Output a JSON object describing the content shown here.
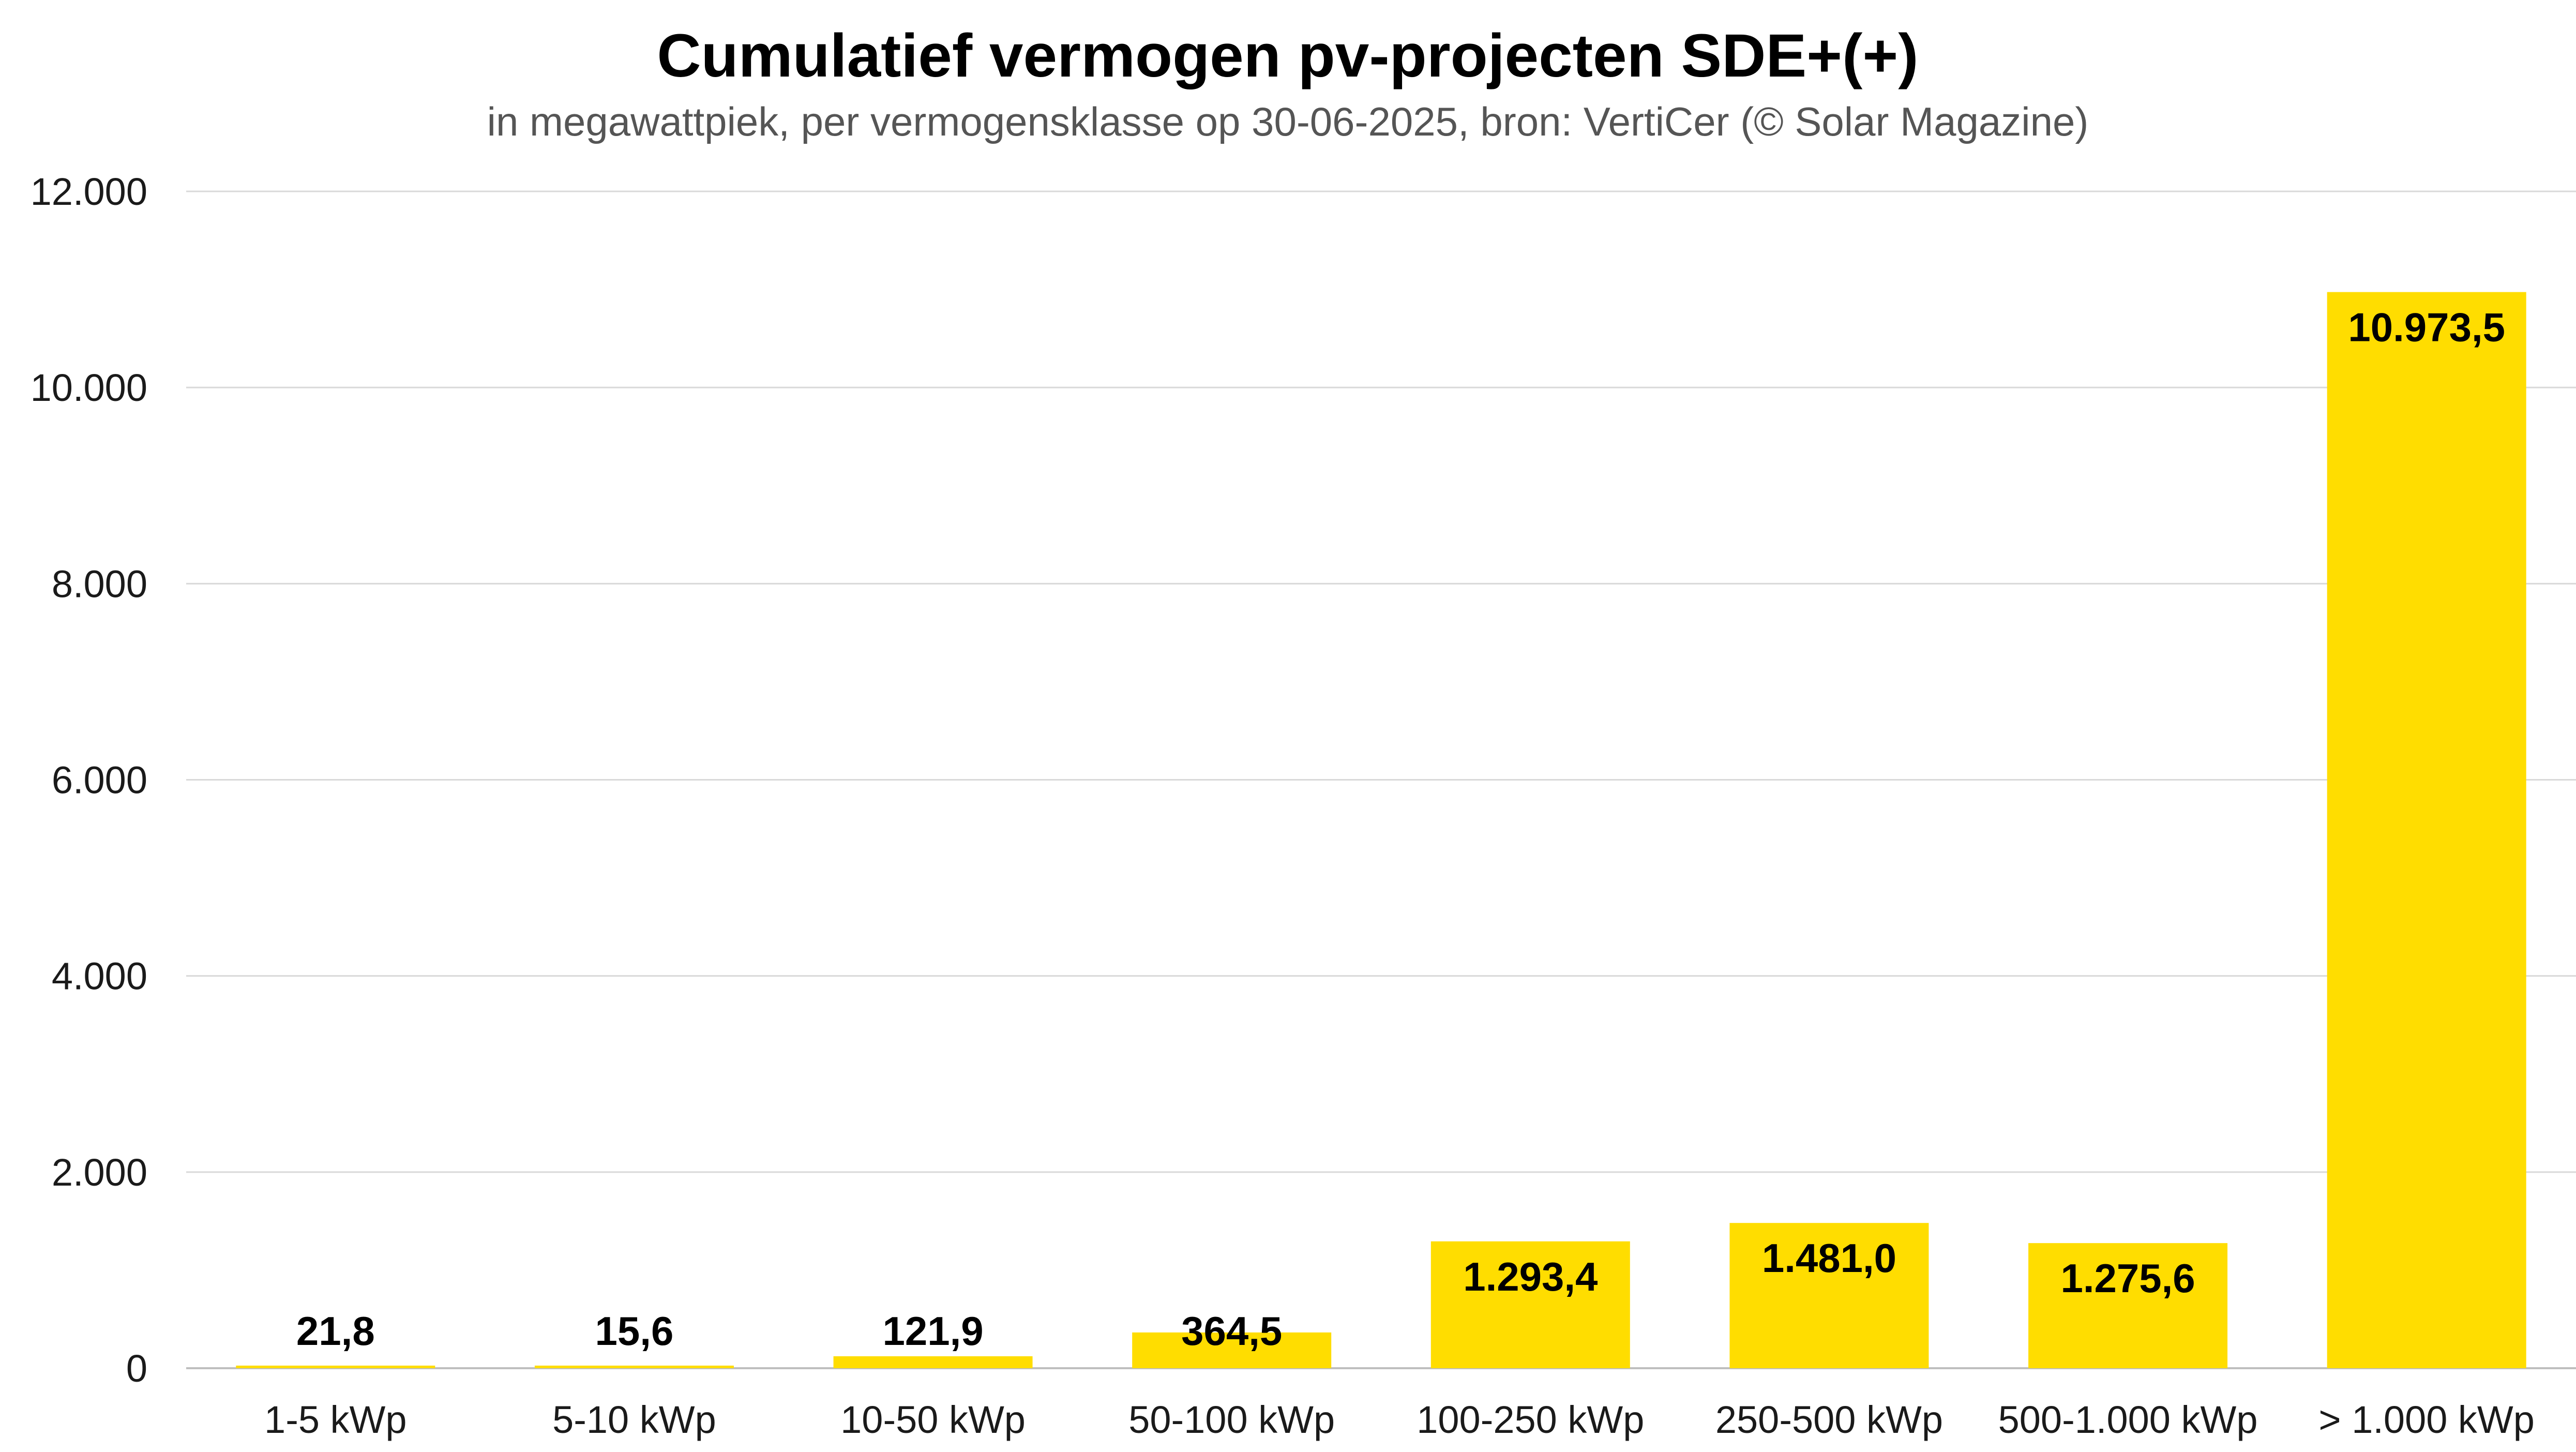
{
  "chart_data": {
    "type": "bar",
    "title": "Cumulatief vermogen pv-projecten SDE+(+)",
    "subtitle": "in megawattpiek, per vermogensklasse op 30-06-2025, bron: VertiCer (© Solar Magazine)",
    "xlabel": "",
    "ylabel": "",
    "ylim": [
      0,
      12000
    ],
    "yticks": [
      0,
      2000,
      4000,
      6000,
      8000,
      10000,
      12000
    ],
    "ytick_labels": [
      "0",
      "2.000",
      "4.000",
      "6.000",
      "8.000",
      "10.000",
      "12.000"
    ],
    "categories": [
      "1-5 kWp",
      "5-10 kWp",
      "10-50 kWp",
      "50-100 kWp",
      "100-250 kWp",
      "250-500 kWp",
      "500-1.000 kWp",
      "> 1.000 kWp"
    ],
    "values": [
      21.8,
      15.6,
      121.9,
      364.5,
      1293.4,
      1481.0,
      1275.6,
      10973.5
    ],
    "data_labels": [
      "21,8",
      "15,6",
      "121,9",
      "364,5",
      "1.293,4",
      "1.481,0",
      "1.275,6",
      "10.973,5"
    ],
    "grid": true,
    "legend": "none",
    "colors": {
      "bar": "#FFDD00"
    }
  }
}
